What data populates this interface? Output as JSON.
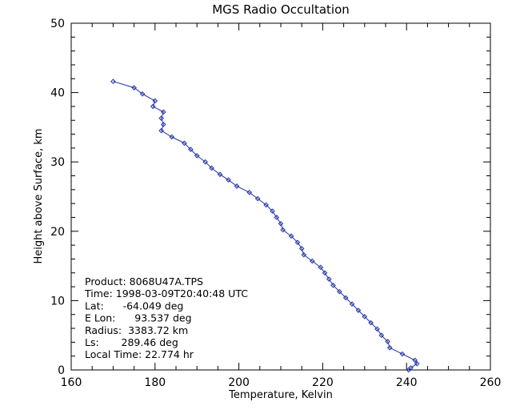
{
  "chart_data": {
    "type": "line",
    "title": "MGS Radio Occultation",
    "xlabel": "Temperature, Kelvin",
    "ylabel": "Height above Surface, km",
    "xlim": [
      160,
      260
    ],
    "ylim": [
      0,
      50
    ],
    "xticks": [
      "160",
      "180",
      "200",
      "220",
      "240",
      "260"
    ],
    "yticks": [
      "0",
      "10",
      "20",
      "30",
      "40",
      "50"
    ],
    "grid": false,
    "color": "#1f2fa8",
    "marker": "diamond",
    "series": [
      {
        "points": [
          [
            170.0,
            41.6
          ],
          [
            175.0,
            40.7
          ],
          [
            177.0,
            39.8
          ],
          [
            180.0,
            38.8
          ],
          [
            179.5,
            38.0
          ],
          [
            182.0,
            37.2
          ],
          [
            181.5,
            36.3
          ],
          [
            182.0,
            35.4
          ],
          [
            181.5,
            34.5
          ],
          [
            184.0,
            33.6
          ],
          [
            187.0,
            32.7
          ],
          [
            188.5,
            31.8
          ],
          [
            190.0,
            30.9
          ],
          [
            192.0,
            30.0
          ],
          [
            193.5,
            29.1
          ],
          [
            195.5,
            28.2
          ],
          [
            197.5,
            27.4
          ],
          [
            199.5,
            26.5
          ],
          [
            202.5,
            25.6
          ],
          [
            204.5,
            24.7
          ],
          [
            206.5,
            23.8
          ],
          [
            208.0,
            22.9
          ],
          [
            209.0,
            22.0
          ],
          [
            210.0,
            21.1
          ],
          [
            210.5,
            20.2
          ],
          [
            212.5,
            19.3
          ],
          [
            214.0,
            18.4
          ],
          [
            215.0,
            17.5
          ],
          [
            215.5,
            16.6
          ],
          [
            217.5,
            15.7
          ],
          [
            219.5,
            14.8
          ],
          [
            220.5,
            14.0
          ],
          [
            221.5,
            13.1
          ],
          [
            222.5,
            12.2
          ],
          [
            224.0,
            11.3
          ],
          [
            225.5,
            10.4
          ],
          [
            227.0,
            9.5
          ],
          [
            228.5,
            8.6
          ],
          [
            230.0,
            7.7
          ],
          [
            231.5,
            6.8
          ],
          [
            233.0,
            5.9
          ],
          [
            234.0,
            5.0
          ],
          [
            235.5,
            4.1
          ],
          [
            236.0,
            3.2
          ],
          [
            239.0,
            2.3
          ],
          [
            242.0,
            1.4
          ],
          [
            242.5,
            0.9
          ],
          [
            241.0,
            0.3
          ],
          [
            240.5,
            0.0
          ]
        ]
      }
    ]
  },
  "info": {
    "lines": [
      "Product: 8068U47A.TPS",
      "Time: 1998-03-09T20:40:48 UTC",
      "Lat:      -64.049 deg",
      "E Lon:      93.537 deg",
      "Radius:  3383.72 km",
      "Ls:       289.46 deg",
      "Local Time: 22.774 hr"
    ]
  }
}
